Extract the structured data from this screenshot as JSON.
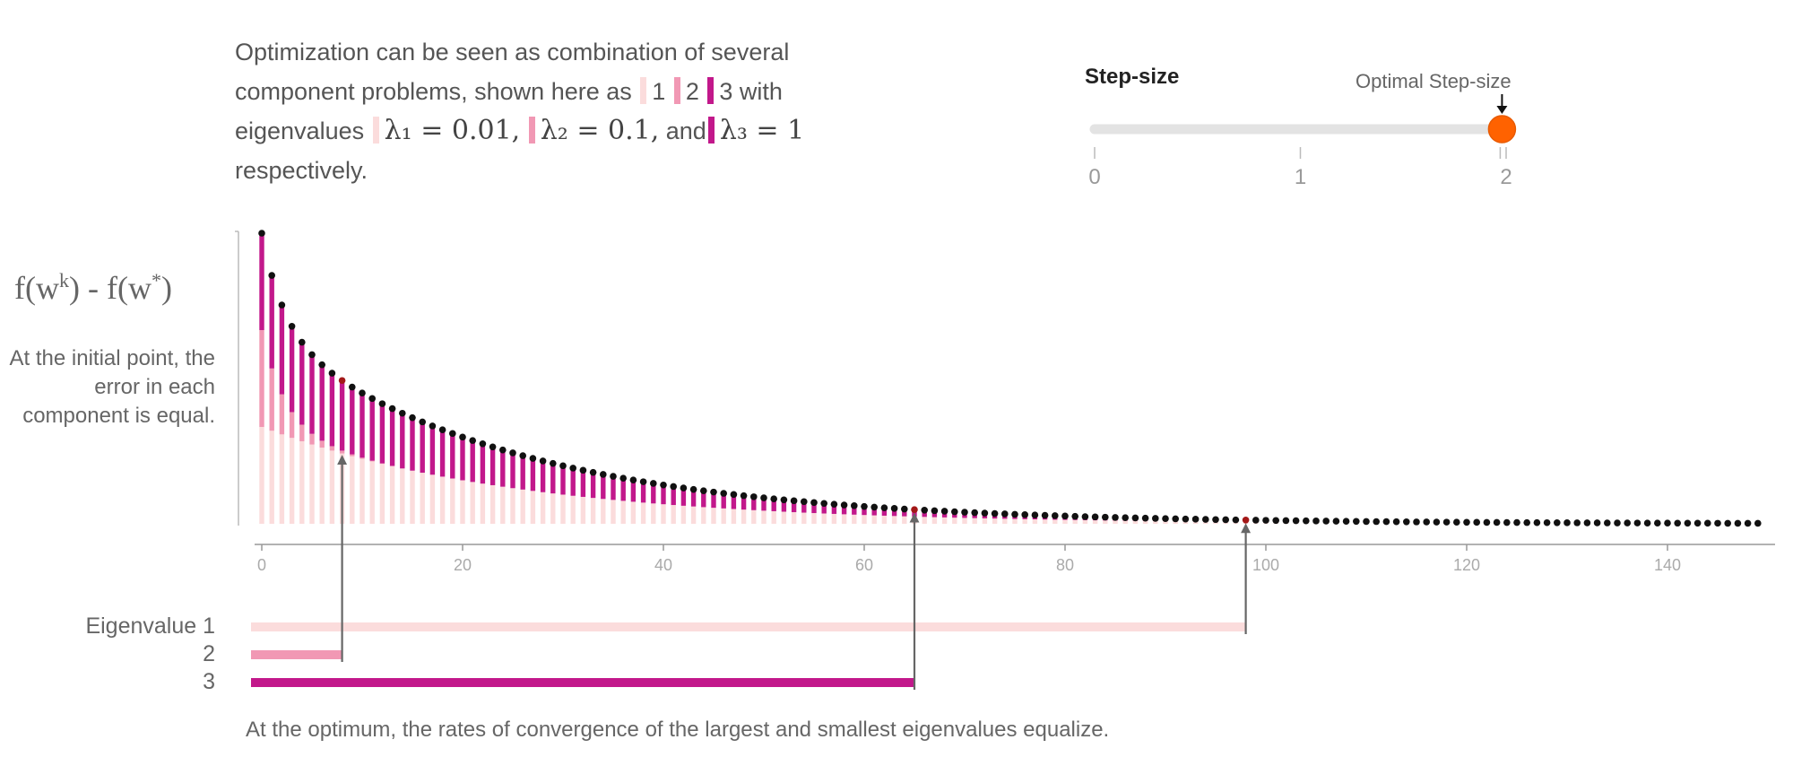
{
  "intro": {
    "p1": "Optimization can be seen as combination of several component problems, shown here as",
    "n1": "1",
    "n2": "2",
    "n3": "3 with eigenvalues",
    "l1": "λ₁ = 0.01,",
    "l2": "λ₂ = 0.1,",
    "and": "and",
    "l3": "λ₃ = 1",
    "respectively": "respectively."
  },
  "slider": {
    "title": "Step-size",
    "optimal_label": "Optimal Step-size",
    "ticks": [
      "0",
      "1",
      "2"
    ],
    "min": 0,
    "max": 2,
    "value": 1.98
  },
  "chart_text": {
    "ylabel_main": "f(w",
    "ylabel_k": "k",
    "ylabel_mid": ") - f(w",
    "ylabel_star": "*",
    "ylabel_end": ")",
    "left_note": "At the initial point, the error in each component is equal.",
    "bottom_note": "At the optimum, the rates of convergence of the largest and smallest eigenvalues equalize."
  },
  "eigen_labels": [
    "Eigenvalue 1",
    "2",
    "3"
  ],
  "colors": {
    "c1": "#fbdcdc",
    "c2": "#f198b4",
    "c3": "#c2188b",
    "dot": "#111111",
    "marker": "#a31818",
    "handle": "#ff6200",
    "axis": "#999999",
    "arrow": "#666666"
  },
  "chart_data": {
    "type": "bar",
    "stacked": true,
    "x_range": [
      0,
      150
    ],
    "x_ticks": [
      "0",
      "20",
      "40",
      "60",
      "80",
      "100",
      "120",
      "140"
    ],
    "num_iterations": 150,
    "initial_component_error": 1,
    "eigenvalues": [
      0.01,
      0.1,
      1
    ],
    "step_size": 1.98,
    "markers": [
      {
        "component": 2,
        "iteration": 8
      },
      {
        "component": 3,
        "iteration": 65
      },
      {
        "component": 1,
        "iteration": 98
      }
    ]
  }
}
